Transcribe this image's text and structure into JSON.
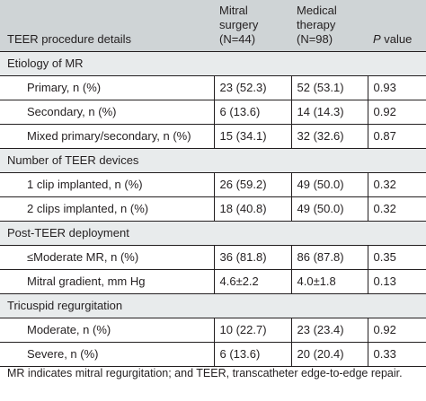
{
  "header": {
    "col1": "TEER procedure details",
    "col2_line1": "Mitral",
    "col2_line2": "surgery",
    "col2_line3": "(N=44)",
    "col3_line1": "Medical",
    "col3_line2": "therapy",
    "col3_line3": "(N=98)",
    "col4_italic": "P",
    "col4_rest": " value"
  },
  "sections": [
    {
      "title": "Etiology of MR",
      "rows": [
        {
          "label": "Primary, n (%)",
          "surgery": "23 (52.3)",
          "medical": "52 (53.1)",
          "p": "0.93"
        },
        {
          "label": "Secondary, n (%)",
          "surgery": "6 (13.6)",
          "medical": "14 (14.3)",
          "p": "0.92"
        },
        {
          "label": "Mixed primary/secondary, n (%)",
          "surgery": "15 (34.1)",
          "medical": "32 (32.6)",
          "p": "0.87"
        }
      ]
    },
    {
      "title": "Number of TEER devices",
      "rows": [
        {
          "label": "1 clip implanted, n (%)",
          "surgery": "26 (59.2)",
          "medical": "49 (50.0)",
          "p": "0.32"
        },
        {
          "label": "2 clips implanted, n (%)",
          "surgery": "18 (40.8)",
          "medical": "49 (50.0)",
          "p": "0.32"
        }
      ]
    },
    {
      "title": "Post-TEER deployment",
      "rows": [
        {
          "label": "≤Moderate MR, n (%)",
          "surgery": "36 (81.8)",
          "medical": "86 (87.8)",
          "p": "0.35"
        },
        {
          "label": "Mitral gradient, mm Hg",
          "surgery": "4.6±2.2",
          "medical": "4.0±1.8",
          "p": "0.13"
        }
      ]
    },
    {
      "title": "Tricuspid regurgitation",
      "rows": [
        {
          "label": "Moderate, n (%)",
          "surgery": "10 (22.7)",
          "medical": "23 (23.4)",
          "p": "0.92"
        },
        {
          "label": "Severe, n (%)",
          "surgery": "6 (13.6)",
          "medical": "20 (20.4)",
          "p": "0.33"
        }
      ]
    }
  ],
  "footnote": "MR indicates mitral regurgitation; and TEER, transcatheter edge-to-edge repair.",
  "colors": {
    "header_bg": "#cfd4d6",
    "section_bg": "#e8ebec",
    "text": "#231f20"
  }
}
